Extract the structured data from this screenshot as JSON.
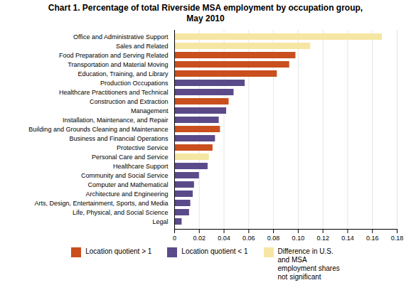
{
  "chart_data": {
    "type": "bar",
    "orientation": "horizontal",
    "title": "Chart 1. Percentage of total Riverside MSA employment by occupation group,\nMay 2010",
    "categories": [
      "Legal",
      "Life, Physical, and Social Science",
      "Arts, Design, Entertainment, Sports, and Media",
      "Architecture and Engineering",
      "Computer and Mathematical",
      "Community and Social Service",
      "Healthcare Support",
      "Personal Care and Service",
      "Protective Service",
      "Business and Financial Operations",
      "Building and Grounds Cleaning and Maintenance",
      "Installation, Maintenance, and Repair",
      "Management",
      "Construction and Extraction",
      "Healthcare Practitioners and Technical",
      "Production Occupations",
      "Education, Training, and Library",
      "Transportation and Material Moving",
      "Food Preparation and Serving Related",
      "Sales and Related",
      "Office and Administrative Support"
    ],
    "values": [
      0.006,
      0.012,
      0.013,
      0.015,
      0.016,
      0.02,
      0.027,
      0.028,
      0.031,
      0.033,
      0.037,
      0.036,
      0.042,
      0.044,
      0.048,
      0.057,
      0.083,
      0.093,
      0.098,
      0.11,
      0.168
    ],
    "colors": [
      "#5b4a8a",
      "#5b4a8a",
      "#5b4a8a",
      "#5b4a8a",
      "#5b4a8a",
      "#5b4a8a",
      "#5b4a8a",
      "#f5e6a3",
      "#c94f1e",
      "#5b4a8a",
      "#c94f1e",
      "#5b4a8a",
      "#5b4a8a",
      "#c94f1e",
      "#5b4a8a",
      "#5b4a8a",
      "#c94f1e",
      "#c94f1e",
      "#c94f1e",
      "#f5e6a3",
      "#f5e6a3"
    ],
    "legend_entries": [
      {
        "label": "Location quotient > 1",
        "color": "#c94f1e"
      },
      {
        "label": "Location quotient < 1",
        "color": "#5b4a8a"
      },
      {
        "label": "Difference in U.S.\nand MSA\nemployment shares\nnot significant",
        "color": "#f5e6a3"
      }
    ],
    "legend": "bottom",
    "xlim": [
      0,
      0.18
    ],
    "xticks": [
      0,
      0.02,
      0.04,
      0.06,
      0.08,
      {
        "value": 0.1,
        "label": "0.10"
      },
      0.12,
      0.14,
      0.16,
      0.18
    ],
    "grid": true
  }
}
